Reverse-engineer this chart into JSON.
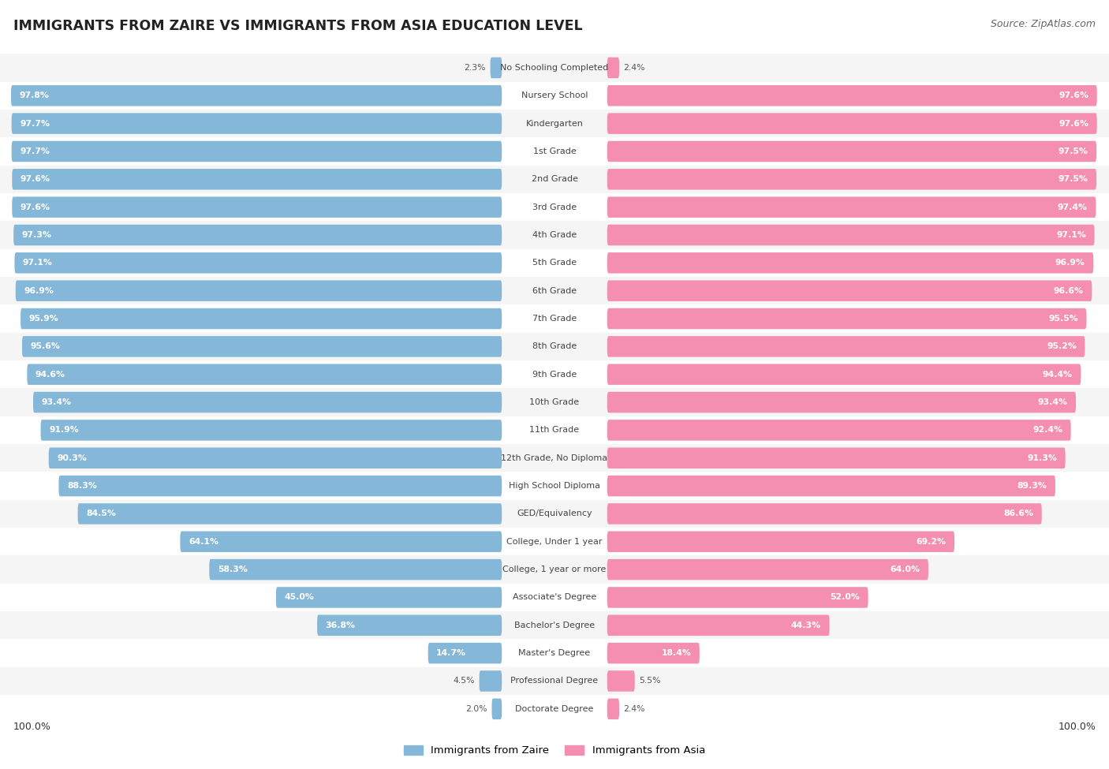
{
  "title": "IMMIGRANTS FROM ZAIRE VS IMMIGRANTS FROM ASIA EDUCATION LEVEL",
  "source": "Source: ZipAtlas.com",
  "categories": [
    "No Schooling Completed",
    "Nursery School",
    "Kindergarten",
    "1st Grade",
    "2nd Grade",
    "3rd Grade",
    "4th Grade",
    "5th Grade",
    "6th Grade",
    "7th Grade",
    "8th Grade",
    "9th Grade",
    "10th Grade",
    "11th Grade",
    "12th Grade, No Diploma",
    "High School Diploma",
    "GED/Equivalency",
    "College, Under 1 year",
    "College, 1 year or more",
    "Associate's Degree",
    "Bachelor's Degree",
    "Master's Degree",
    "Professional Degree",
    "Doctorate Degree"
  ],
  "zaire_values": [
    2.3,
    97.8,
    97.7,
    97.7,
    97.6,
    97.6,
    97.3,
    97.1,
    96.9,
    95.9,
    95.6,
    94.6,
    93.4,
    91.9,
    90.3,
    88.3,
    84.5,
    64.1,
    58.3,
    45.0,
    36.8,
    14.7,
    4.5,
    2.0
  ],
  "asia_values": [
    2.4,
    97.6,
    97.6,
    97.5,
    97.5,
    97.4,
    97.1,
    96.9,
    96.6,
    95.5,
    95.2,
    94.4,
    93.4,
    92.4,
    91.3,
    89.3,
    86.6,
    69.2,
    64.0,
    52.0,
    44.3,
    18.4,
    5.5,
    2.4
  ],
  "zaire_color": "#85b8d8",
  "asia_color": "#f48fb1",
  "background_color": "#ffffff",
  "row_even_color": "#f5f5f5",
  "row_odd_color": "#ffffff",
  "label_inside_color": "#ffffff",
  "label_outside_color": "#555555",
  "center_label_color": "#444444",
  "title_color": "#222222",
  "source_color": "#666666"
}
